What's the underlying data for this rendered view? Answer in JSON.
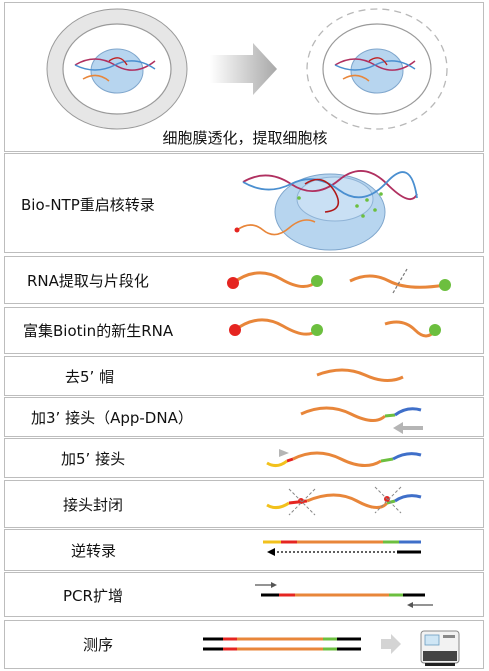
{
  "steps": [
    {
      "label": "细胞膜透化，提取细胞核"
    },
    {
      "label": "Bio-NTP重启核转录"
    },
    {
      "label": "RNA提取与片段化"
    },
    {
      "label": "富集Biotin的新生RNA"
    },
    {
      "label": "去5’ 帽"
    },
    {
      "label": "加3’ 接头（App-DNA）"
    },
    {
      "label": "加5’ 接头"
    },
    {
      "label": "接头封闭"
    },
    {
      "label": "逆转录"
    },
    {
      "label": "PCR扩增"
    },
    {
      "label": "测序"
    }
  ],
  "colors": {
    "rna": "#e8863a",
    "biotin": "#6cbf3f",
    "cap": "#e52521",
    "adapter3": "#3f6fc9",
    "adapter5": "#f2c11c",
    "block": "#e52521",
    "nucleus": "#b7d5ef",
    "cell_ring": "#e6e6e6",
    "border": "#bdbdbd"
  },
  "icons": [
    "cell-icon",
    "arrow-right-icon",
    "polymerase-complex-icon",
    "sequencer-icon"
  ]
}
